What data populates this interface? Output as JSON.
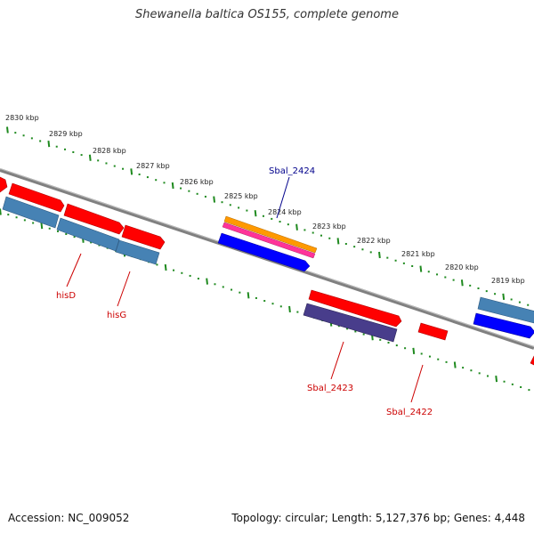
{
  "title": "Shewanella baltica OS155, complete genome",
  "footer": {
    "accession": "Accession: NC_009052",
    "summary": "Topology: circular; Length: 5,127,376 bp; Genes: 4,448"
  },
  "scale_labels": [
    "2830 kbp",
    "2829 kbp",
    "2828 kbp",
    "2827 kbp",
    "2826 kbp",
    "2825 kbp",
    "2824 kbp",
    "2823 kbp",
    "2822 kbp",
    "2821 kbp",
    "2820 kbp",
    "2819 kbp"
  ],
  "gene_labels": [
    {
      "text": "Sbal_2424",
      "color": "#00008b"
    },
    {
      "text": "hisD",
      "color": "#cc0000"
    },
    {
      "text": "hisG",
      "color": "#cc0000"
    },
    {
      "text": "Sbal_2423",
      "color": "#cc0000"
    },
    {
      "text": "Sbal_2422",
      "color": "#cc0000"
    }
  ],
  "colors": {
    "backbone": "#808080",
    "tick": "#1f8a1f",
    "red": "#ff0000",
    "steel": "#4682b4",
    "blue": "#0000ff",
    "orange": "#ff9900",
    "pink": "#ff3399",
    "purple": "#483d8b"
  }
}
